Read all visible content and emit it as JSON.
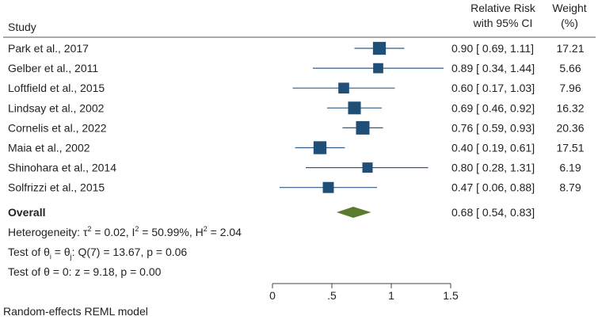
{
  "chart_data": {
    "type": "forest",
    "headers": {
      "study": "Study",
      "effect_line1": "Relative Risk",
      "effect_line2": "with 95% CI",
      "weight_line1": "Weight",
      "weight_line2": "(%)"
    },
    "studies": [
      {
        "name": "Park et al., 2017",
        "rr": 0.9,
        "lo": 0.69,
        "hi": 1.11,
        "ci_text": "0.90 [ 0.69,  1.11]",
        "weight": "17.21"
      },
      {
        "name": "Gelber et al., 2011",
        "rr": 0.89,
        "lo": 0.34,
        "hi": 1.44,
        "ci_text": "0.89 [ 0.34,  1.44]",
        "weight": "5.66"
      },
      {
        "name": "Loftfield et al., 2015",
        "rr": 0.6,
        "lo": 0.17,
        "hi": 1.03,
        "ci_text": "0.60 [ 0.17,  1.03]",
        "weight": "7.96"
      },
      {
        "name": "Lindsay et al., 2002",
        "rr": 0.69,
        "lo": 0.46,
        "hi": 0.92,
        "ci_text": "0.69 [ 0.46,  0.92]",
        "weight": "16.32"
      },
      {
        "name": "Cornelis et al., 2022",
        "rr": 0.76,
        "lo": 0.59,
        "hi": 0.93,
        "ci_text": "0.76 [ 0.59,  0.93]",
        "weight": "20.36"
      },
      {
        "name": "Maia et al., 2002",
        "rr": 0.4,
        "lo": 0.19,
        "hi": 0.61,
        "ci_text": "0.40 [ 0.19,  0.61]",
        "weight": "17.51"
      },
      {
        "name": "Shinohara et al., 2014",
        "rr": 0.8,
        "lo": 0.28,
        "hi": 1.31,
        "ci_text": "0.80 [ 0.28,  1.31]",
        "weight": "6.19"
      },
      {
        "name": "Solfrizzi et al., 2015",
        "rr": 0.47,
        "lo": 0.06,
        "hi": 0.88,
        "ci_text": "0.47 [ 0.06,  0.88]",
        "weight": "8.79"
      }
    ],
    "overall": {
      "name": "Overall",
      "rr": 0.68,
      "lo": 0.54,
      "hi": 0.83,
      "ci_text": "0.68 [ 0.54,  0.83]"
    },
    "heterogeneity": {
      "prefix": "Heterogeneity: ",
      "tau": "τ",
      "tau_sup": "2",
      "tau_val": " = 0.02, ",
      "i": "I",
      "i_sup": "2",
      "i_val": " = 50.99%, ",
      "h": "H",
      "h_sup": "2",
      "h_val": " = 2.04"
    },
    "test_equal": {
      "prefix": "Test of θ",
      "sub1": "i",
      "mid": " = θ",
      "sub2": "j",
      "rest": ": Q(7) = 13.67, p = 0.06"
    },
    "test_zero": "Test of θ = 0: z = 9.18, p = 0.00",
    "xaxis": {
      "ticks": [
        0,
        0.5,
        1,
        1.5
      ],
      "tick_labels": [
        "0",
        ".5",
        "1",
        "1.5"
      ],
      "range": [
        0,
        1.5
      ]
    },
    "footnote": "Random-effects REML model",
    "colors": {
      "marker": "#1f4e79",
      "ci_line": "#2f5d8a",
      "diamond": "#5a7a2e",
      "text": "#222222",
      "axis": "#444444"
    }
  }
}
